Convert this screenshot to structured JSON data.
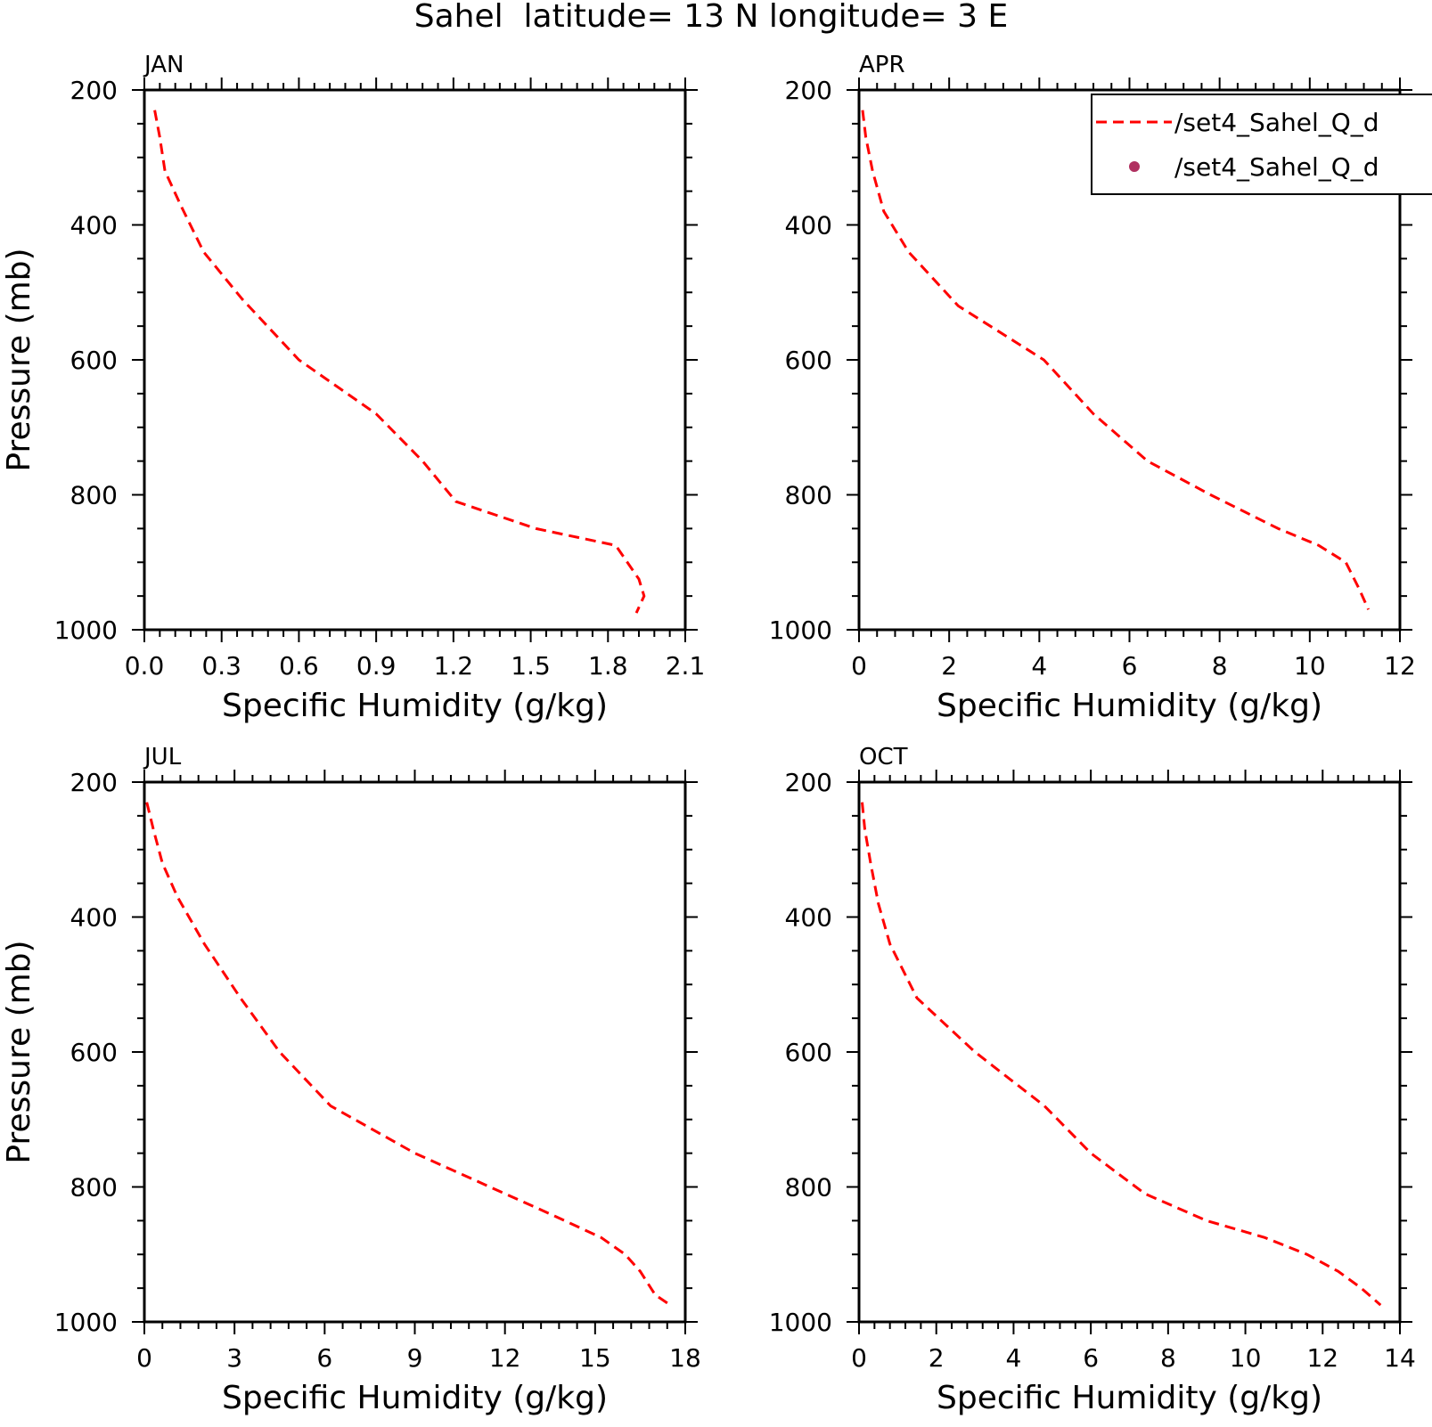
{
  "figure_title": "Sahel  latitude= 13 N longitude= 3 E",
  "colors": {
    "series_line": "#ff0000",
    "legend_marker": "#b03060",
    "axes": "#000000"
  },
  "legend": {
    "placement": "top-right of APR panel, clipped at right edge",
    "entries": [
      {
        "label": "/set4_Sahel_Q_d",
        "style": "dashed-line",
        "color": "#ff0000"
      },
      {
        "label": "/set4_Sahel_Q_d",
        "style": "dot",
        "color": "#b03060"
      }
    ]
  },
  "chart_data": [
    {
      "type": "line",
      "panel": "JAN",
      "xlabel": "Specific Humidity (g/kg)",
      "ylabel": "Pressure (mb)",
      "xlim": [
        0,
        2.1
      ],
      "xticks": [
        0,
        0.3,
        0.6,
        0.9,
        1.2,
        1.5,
        1.8,
        2.1
      ],
      "xticklabels": [
        "0.0",
        "0.3",
        "0.6",
        "0.9",
        "1.2",
        "1.5",
        "1.8",
        "2.1"
      ],
      "ylim": [
        1000,
        200
      ],
      "yticks": [
        200,
        400,
        600,
        800,
        1000
      ],
      "yticklabels": [
        "200",
        "400",
        "600",
        "800",
        "1000"
      ],
      "series": [
        {
          "style": "dashed",
          "color": "#ff0000",
          "x": [
            0.04,
            0.06,
            0.08,
            0.14,
            0.23,
            0.38,
            0.6,
            0.9,
            1.08,
            1.21,
            1.52,
            1.83,
            1.92,
            1.94,
            1.91
          ],
          "y": [
            230,
            270,
            320,
            370,
            440,
            510,
            600,
            680,
            750,
            810,
            850,
            875,
            925,
            950,
            975
          ]
        }
      ]
    },
    {
      "type": "line",
      "panel": "APR",
      "xlabel": "Specific Humidity (g/kg)",
      "ylabel": "",
      "xlim": [
        0,
        12
      ],
      "xticks": [
        0,
        2,
        4,
        6,
        8,
        10,
        12
      ],
      "xticklabels": [
        "0",
        "2",
        "4",
        "6",
        "8",
        "10",
        "12"
      ],
      "ylim": [
        1000,
        200
      ],
      "yticks": [
        200,
        400,
        600,
        800,
        1000
      ],
      "yticklabels": [
        "200",
        "400",
        "600",
        "800",
        "1000"
      ],
      "series": [
        {
          "style": "dashed",
          "color": "#ff0000",
          "x": [
            0.08,
            0.15,
            0.3,
            0.55,
            1.1,
            2.2,
            4.1,
            5.2,
            6.4,
            7.8,
            9.3,
            10.2,
            10.8,
            11.1,
            11.3
          ],
          "y": [
            230,
            270,
            320,
            380,
            440,
            520,
            600,
            680,
            750,
            800,
            850,
            875,
            900,
            940,
            970
          ]
        }
      ]
    },
    {
      "type": "line",
      "panel": "JUL",
      "xlabel": "Specific Humidity (g/kg)",
      "ylabel": "Pressure (mb)",
      "xlim": [
        0,
        18
      ],
      "xticks": [
        0,
        3,
        6,
        9,
        12,
        15,
        18
      ],
      "xticklabels": [
        "0",
        "3",
        "6",
        "9",
        "12",
        "15",
        "18"
      ],
      "ylim": [
        1000,
        200
      ],
      "yticks": [
        200,
        400,
        600,
        800,
        1000
      ],
      "yticklabels": [
        "200",
        "400",
        "600",
        "800",
        "1000"
      ],
      "series": [
        {
          "style": "dashed",
          "color": "#ff0000",
          "x": [
            0.08,
            0.3,
            0.6,
            1.1,
            2.0,
            3.2,
            4.5,
            6.2,
            9.0,
            11.5,
            13.5,
            15.2,
            16.0,
            16.5,
            17.0,
            17.5
          ],
          "y": [
            230,
            270,
            320,
            370,
            440,
            520,
            600,
            680,
            750,
            800,
            840,
            875,
            900,
            925,
            960,
            975
          ]
        }
      ]
    },
    {
      "type": "line",
      "panel": "OCT",
      "xlabel": "Specific Humidity (g/kg)",
      "ylabel": "",
      "xlim": [
        0,
        14
      ],
      "xticks": [
        0,
        2,
        4,
        6,
        8,
        10,
        12,
        14
      ],
      "xticklabels": [
        "0",
        "2",
        "4",
        "6",
        "8",
        "10",
        "12",
        "14"
      ],
      "ylim": [
        1000,
        200
      ],
      "yticks": [
        200,
        400,
        600,
        800,
        1000
      ],
      "yticklabels": [
        "200",
        "400",
        "600",
        "800",
        "1000"
      ],
      "series": [
        {
          "style": "dashed",
          "color": "#ff0000",
          "x": [
            0.08,
            0.15,
            0.3,
            0.5,
            0.8,
            1.5,
            3.0,
            4.8,
            6.0,
            7.4,
            9.0,
            10.5,
            11.6,
            12.4,
            13.0,
            13.5
          ],
          "y": [
            230,
            270,
            320,
            380,
            440,
            520,
            600,
            680,
            750,
            810,
            850,
            875,
            900,
            925,
            950,
            975
          ]
        }
      ]
    }
  ]
}
